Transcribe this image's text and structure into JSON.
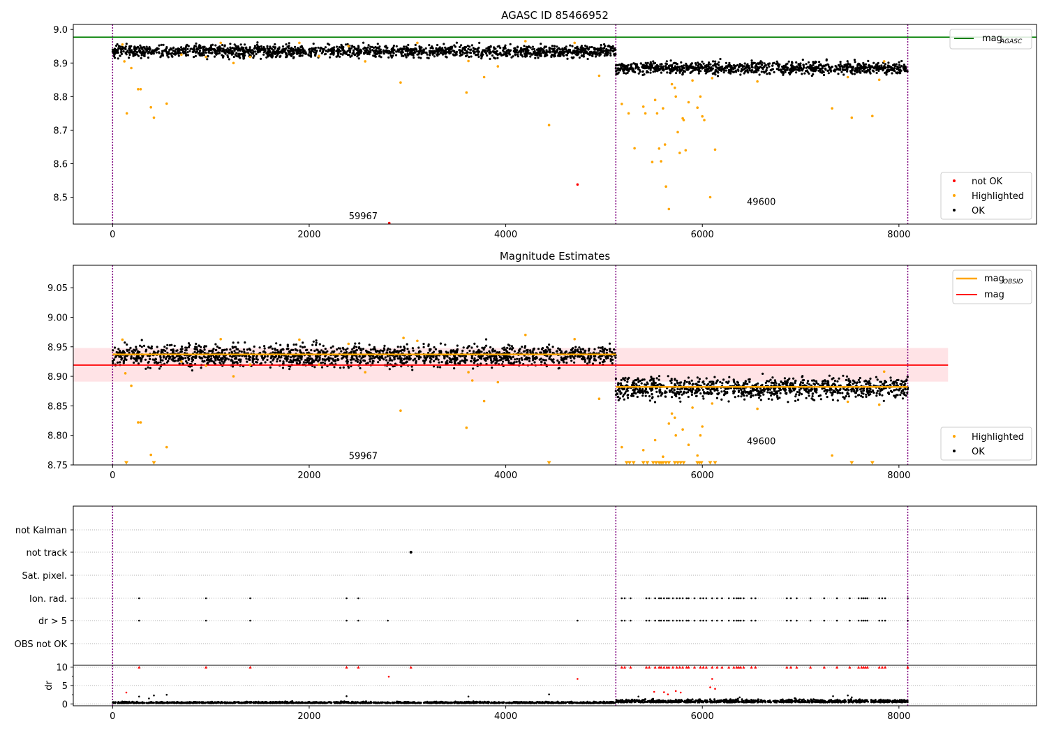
{
  "figure": {
    "width": 1500,
    "height": 1050
  },
  "chart_data": [
    {
      "type": "scatter",
      "title": "AGASC ID 85466952",
      "xlabel": "",
      "ylabel": "",
      "xlim": [
        -400,
        9400
      ],
      "ylim": [
        8.42,
        9.015
      ],
      "xticks": [
        0,
        2000,
        4000,
        6000,
        8000
      ],
      "xtick_labels": [
        "0",
        "2000",
        "4000",
        "6000",
        "8000"
      ],
      "yticks": [
        8.5,
        8.6,
        8.7,
        8.8,
        8.9,
        9.0
      ],
      "ytick_labels": [
        "8.5",
        "8.6",
        "8.7",
        "8.8",
        "8.9",
        "9.0"
      ],
      "vlines": [
        0,
        5120,
        8090
      ],
      "hlines": [
        {
          "name": "mag_AGASC",
          "label_main": "mag",
          "label_sub": "AGASC",
          "y": 8.977,
          "x": [
            -400,
            9400
          ],
          "color": "#008000"
        }
      ],
      "obs_labels": [
        {
          "text": "59967",
          "x": 2550,
          "y": 8.435
        },
        {
          "text": "49600",
          "x": 6600,
          "y": 8.477
        }
      ],
      "ok_segments": [
        {
          "x": [
            0,
            5120
          ],
          "center": 8.935,
          "spread": 0.02
        },
        {
          "x": [
            5120,
            8090
          ],
          "center": 8.885,
          "spread": 0.02
        }
      ],
      "ok_points_per_segment": [
        1700,
        1000
      ],
      "series": [
        {
          "name": "not OK",
          "color": "#ff0000",
          "points": [
            [
              4730,
              8.538
            ],
            [
              2815,
              8.423
            ]
          ]
        },
        {
          "name": "Highlighted",
          "color": "#ffa500",
          "points": [
            [
              100,
              8.955
            ],
            [
              120,
              8.905
            ],
            [
              145,
              8.75
            ],
            [
              190,
              8.885
            ],
            [
              260,
              8.822
            ],
            [
              285,
              8.822
            ],
            [
              390,
              8.768
            ],
            [
              420,
              8.737
            ],
            [
              550,
              8.779
            ],
            [
              700,
              8.925
            ],
            [
              950,
              8.918
            ],
            [
              1100,
              8.96
            ],
            [
              1230,
              8.9
            ],
            [
              1400,
              8.918
            ],
            [
              1900,
              8.96
            ],
            [
              2100,
              8.92
            ],
            [
              2400,
              8.95
            ],
            [
              2570,
              8.905
            ],
            [
              2930,
              8.842
            ],
            [
              3100,
              8.96
            ],
            [
              3600,
              8.812
            ],
            [
              3620,
              8.906
            ],
            [
              3780,
              8.858
            ],
            [
              3920,
              8.89
            ],
            [
              4200,
              8.965
            ],
            [
              4440,
              8.715
            ],
            [
              4700,
              8.96
            ],
            [
              4950,
              8.862
            ],
            [
              5180,
              8.778
            ],
            [
              5250,
              8.75
            ],
            [
              5310,
              8.646
            ],
            [
              5400,
              8.77
            ],
            [
              5420,
              8.75
            ],
            [
              5490,
              8.605
            ],
            [
              5520,
              8.79
            ],
            [
              5540,
              8.75
            ],
            [
              5560,
              8.645
            ],
            [
              5580,
              8.607
            ],
            [
              5600,
              8.765
            ],
            [
              5620,
              8.657
            ],
            [
              5630,
              8.532
            ],
            [
              5660,
              8.465
            ],
            [
              5690,
              8.837
            ],
            [
              5720,
              8.826
            ],
            [
              5730,
              8.8
            ],
            [
              5750,
              8.694
            ],
            [
              5770,
              8.632
            ],
            [
              5800,
              8.735
            ],
            [
              5810,
              8.73
            ],
            [
              5830,
              8.64
            ],
            [
              5860,
              8.783
            ],
            [
              5900,
              8.848
            ],
            [
              5950,
              8.767
            ],
            [
              5980,
              8.8
            ],
            [
              6000,
              8.741
            ],
            [
              6020,
              8.73
            ],
            [
              6080,
              8.5
            ],
            [
              6100,
              8.855
            ],
            [
              6130,
              8.642
            ],
            [
              6560,
              8.845
            ],
            [
              7320,
              8.765
            ],
            [
              7480,
              8.858
            ],
            [
              7520,
              8.737
            ],
            [
              7730,
              8.742
            ],
            [
              7800,
              8.85
            ],
            [
              7850,
              8.905
            ]
          ]
        },
        {
          "name": "OK",
          "color": "#000000",
          "points": []
        }
      ],
      "legend_top": {
        "location": "top-right",
        "entries": [
          "mag_AGASC"
        ]
      },
      "legend_bottom": {
        "location": "lower-right",
        "entries": [
          "not OK",
          "Highlighted",
          "OK"
        ]
      }
    },
    {
      "type": "scatter",
      "title": "Magnitude Estimates",
      "xlabel": "",
      "ylabel": "",
      "xlim": [
        -400,
        9400
      ],
      "ylim": [
        8.75,
        9.088
      ],
      "xticks": [
        0,
        2000,
        4000,
        6000,
        8000
      ],
      "xtick_labels": [
        "0",
        "2000",
        "4000",
        "6000",
        "8000"
      ],
      "yticks": [
        8.75,
        8.8,
        8.85,
        8.9,
        8.95,
        9.0,
        9.05
      ],
      "ytick_labels": [
        "8.75",
        "8.80",
        "8.85",
        "8.90",
        "8.95",
        "9.00",
        "9.05"
      ],
      "vlines": [
        0,
        5120,
        8090
      ],
      "band": {
        "x": [
          -400,
          8500
        ],
        "y": [
          8.891,
          8.948
        ],
        "color": "#ffc0c8"
      },
      "mag_line": {
        "name": "mag",
        "label": "mag",
        "y": 8.919,
        "x": [
          -400,
          8500
        ],
        "color": "#ff0000"
      },
      "obsid_lines": [
        {
          "x": [
            0,
            5120
          ],
          "y": 8.937
        },
        {
          "x": [
            5120,
            8090
          ],
          "y": 8.882
        }
      ],
      "obsid_label_main": "mag",
      "obsid_label_sub": "OBSID",
      "obsid_color": "#ffa500",
      "obs_labels": [
        {
          "text": "59967",
          "x": 2550,
          "y": 8.76
        },
        {
          "text": "49600",
          "x": 6600,
          "y": 8.785
        }
      ],
      "ok_segments": [
        {
          "x": [
            0,
            5120
          ],
          "center": 8.935,
          "spread": 0.02
        },
        {
          "x": [
            5120,
            8090
          ],
          "center": 8.88,
          "spread": 0.02
        }
      ],
      "ok_points_per_segment": [
        1700,
        1000
      ],
      "series": [
        {
          "name": "Highlighted",
          "color": "#ffa500",
          "points": [
            [
              100,
              8.962
            ],
            [
              130,
              8.905
            ],
            [
              190,
              8.884
            ],
            [
              260,
              8.822
            ],
            [
              285,
              8.822
            ],
            [
              390,
              8.767
            ],
            [
              550,
              8.78
            ],
            [
              700,
              8.925
            ],
            [
              950,
              8.918
            ],
            [
              1100,
              8.963
            ],
            [
              1230,
              8.9
            ],
            [
              1400,
              8.92
            ],
            [
              1900,
              8.962
            ],
            [
              2100,
              8.92
            ],
            [
              2400,
              8.955
            ],
            [
              2570,
              8.907
            ],
            [
              2930,
              8.842
            ],
            [
              2960,
              8.965
            ],
            [
              3100,
              8.96
            ],
            [
              3600,
              8.813
            ],
            [
              3620,
              8.907
            ],
            [
              3660,
              8.893
            ],
            [
              3780,
              8.858
            ],
            [
              3920,
              8.89
            ],
            [
              4200,
              8.97
            ],
            [
              4700,
              8.963
            ],
            [
              4950,
              8.862
            ],
            [
              5180,
              8.78
            ],
            [
              5400,
              8.775
            ],
            [
              5520,
              8.792
            ],
            [
              5600,
              8.764
            ],
            [
              5660,
              8.82
            ],
            [
              5690,
              8.837
            ],
            [
              5720,
              8.83
            ],
            [
              5730,
              8.8
            ],
            [
              5800,
              8.81
            ],
            [
              5860,
              8.784
            ],
            [
              5900,
              8.847
            ],
            [
              5950,
              8.766
            ],
            [
              5980,
              8.8
            ],
            [
              6000,
              8.815
            ],
            [
              6100,
              8.854
            ],
            [
              6560,
              8.845
            ],
            [
              7320,
              8.766
            ],
            [
              7480,
              8.857
            ],
            [
              7800,
              8.852
            ],
            [
              7850,
              8.908
            ]
          ]
        },
        {
          "name": "OK",
          "color": "#000000",
          "points": []
        }
      ],
      "clipped_markers": {
        "shape": "triangle-down",
        "y": 8.753,
        "x": [
          140,
          420,
          4440,
          5230,
          5260,
          5300,
          5400,
          5440,
          5500,
          5530,
          5560,
          5580,
          5600,
          5630,
          5660,
          5720,
          5750,
          5780,
          5810,
          5950,
          5970,
          5990,
          6080,
          6130,
          7520,
          7730
        ]
      },
      "legend_top": {
        "location": "top-right",
        "entries": [
          "mag_OBSID",
          "mag"
        ]
      },
      "legend_bottom": {
        "location": "lower-right",
        "entries": [
          "Highlighted",
          "OK"
        ]
      }
    },
    {
      "type": "scatter",
      "title": "",
      "xlim": [
        -400,
        9400
      ],
      "xticks": [
        0,
        2000,
        4000,
        6000,
        8000
      ],
      "xtick_labels": [
        "0",
        "2000",
        "4000",
        "6000",
        "8000"
      ],
      "vlines": [
        0,
        5120,
        8090
      ],
      "flag_rows": [
        "not Kalman",
        "not track",
        "Sat. pixel.",
        "Ion. rad.",
        "dr > 5",
        "OBS not OK"
      ],
      "flags": {
        "not track": [
          3035
        ],
        "Ion. rad.": [
          270,
          950,
          1400,
          2380,
          2500,
          5180,
          5210,
          5270,
          5430,
          5460,
          5520,
          5560,
          5580,
          5610,
          5640,
          5660,
          5700,
          5740,
          5770,
          5800,
          5840,
          5860,
          5920,
          5980,
          6010,
          6040,
          6100,
          6150,
          6200,
          6270,
          6320,
          6350,
          6370,
          6390,
          6420,
          6500,
          6540,
          6860,
          6900,
          6960,
          7100,
          7240,
          7370,
          7500,
          7590,
          7620,
          7640,
          7660,
          7680,
          7800,
          7830,
          7860,
          8090
        ],
        "dr > 5": [
          270,
          950,
          1400,
          2380,
          2500,
          2800,
          4730,
          5180,
          5210,
          5270,
          5430,
          5460,
          5520,
          5560,
          5580,
          5610,
          5640,
          5660,
          5700,
          5740,
          5770,
          5800,
          5840,
          5860,
          5920,
          5980,
          6010,
          6040,
          6100,
          6150,
          6200,
          6270,
          6320,
          6350,
          6370,
          6390,
          6420,
          6500,
          6540,
          6860,
          6900,
          6960,
          7100,
          7240,
          7370,
          7500,
          7590,
          7620,
          7640,
          7660,
          7680,
          7800,
          7830,
          7860,
          8090
        ]
      },
      "dr_panel": {
        "ylabel": "dr",
        "ylim": [
          -0.5,
          10.5
        ],
        "yticks": [
          0,
          5,
          10
        ],
        "ytick_labels": [
          "0",
          "5",
          "10"
        ],
        "clip_value": 10,
        "ok_segments": [
          {
            "x": [
              0,
              5120
            ],
            "center": 0.3,
            "spread": 0.3
          },
          {
            "x": [
              5120,
              8090
            ],
            "center": 0.6,
            "spread": 0.6
          }
        ],
        "ok_points_per_segment": [
          1300,
          900
        ],
        "outliers_black": [
          [
            270,
            2.0
          ],
          [
            370,
            1.5
          ],
          [
            420,
            2.3
          ],
          [
            550,
            2.5
          ],
          [
            2380,
            2.1
          ],
          [
            3620,
            2.0
          ],
          [
            4440,
            2.6
          ],
          [
            5350,
            2.0
          ],
          [
            6380,
            1.8
          ],
          [
            7330,
            2.1
          ],
          [
            7480,
            2.3
          ],
          [
            7520,
            1.8
          ]
        ],
        "outliers_red": [
          [
            140,
            3.1
          ],
          [
            2810,
            7.4
          ],
          [
            4730,
            6.8
          ],
          [
            5510,
            3.3
          ],
          [
            5610,
            3.2
          ],
          [
            5650,
            2.6
          ],
          [
            5730,
            3.5
          ],
          [
            5780,
            3.1
          ],
          [
            6080,
            4.5
          ],
          [
            6100,
            6.8
          ],
          [
            6130,
            4.1
          ]
        ],
        "clipped_red_x": [
          270,
          950,
          1400,
          2380,
          2500,
          3035,
          5180,
          5210,
          5270,
          5430,
          5460,
          5520,
          5560,
          5580,
          5610,
          5640,
          5660,
          5700,
          5740,
          5770,
          5800,
          5840,
          5860,
          5920,
          5980,
          6010,
          6040,
          6100,
          6150,
          6200,
          6270,
          6320,
          6350,
          6370,
          6390,
          6420,
          6500,
          6540,
          6860,
          6900,
          6960,
          7100,
          7240,
          7370,
          7500,
          7590,
          7620,
          7640,
          7660,
          7680,
          7800,
          7830,
          7860,
          8090
        ]
      }
    }
  ]
}
